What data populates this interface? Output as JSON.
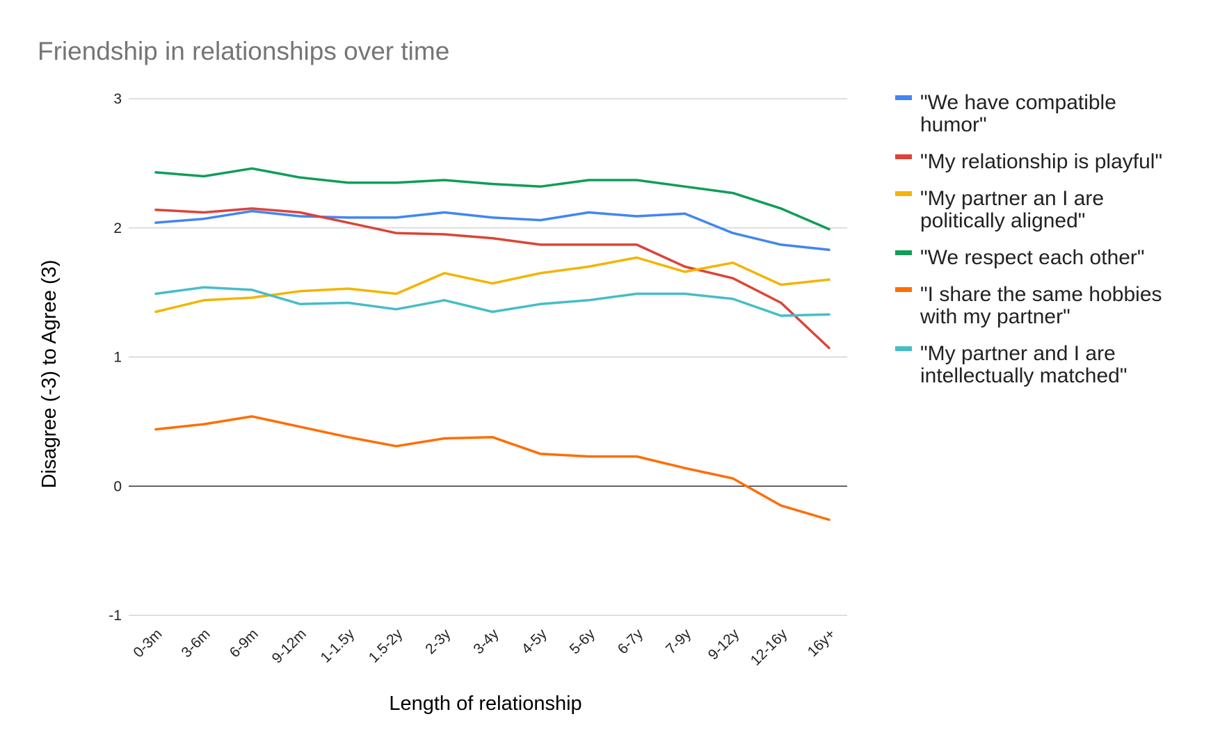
{
  "chart_data": {
    "type": "line",
    "title": "Friendship in relationships over time",
    "xlabel": "Length of relationship",
    "ylabel": "Disagree (-3) to Agree (3)",
    "ylim": [
      -1,
      3
    ],
    "yticks": [
      "3",
      "2",
      "1",
      "0",
      "-1"
    ],
    "grid": true,
    "legend_position": "right",
    "categories": [
      "0-3m",
      "3-6m",
      "6-9m",
      "9-12m",
      "1-1.5y",
      "1.5-2y",
      "2-3y",
      "3-4y",
      "4-5y",
      "5-6y",
      "6-7y",
      "7-9y",
      "9-12y",
      "12-16y",
      "16y+"
    ],
    "series": [
      {
        "name": "\"We have compatible humor\"",
        "legend_lines": [
          "\"We have compatible",
          "humor\""
        ],
        "color": "#4285f4",
        "values": [
          2.04,
          2.07,
          2.13,
          2.09,
          2.08,
          2.08,
          2.12,
          2.08,
          2.06,
          2.12,
          2.09,
          2.11,
          1.96,
          1.87,
          1.83
        ]
      },
      {
        "name": "\"My relationship is playful\"",
        "legend_lines": [
          "\"My relationship is playful\""
        ],
        "color": "#db4437",
        "values": [
          2.14,
          2.12,
          2.15,
          2.12,
          2.04,
          1.96,
          1.95,
          1.92,
          1.87,
          1.87,
          1.87,
          1.7,
          1.61,
          1.42,
          1.07
        ]
      },
      {
        "name": "\"My partner an I are politically aligned\"",
        "legend_lines": [
          "\"My partner an I are",
          "politically aligned\""
        ],
        "color": "#f4b400",
        "values": [
          1.35,
          1.44,
          1.46,
          1.51,
          1.53,
          1.49,
          1.65,
          1.57,
          1.65,
          1.7,
          1.77,
          1.66,
          1.73,
          1.56,
          1.6
        ]
      },
      {
        "name": "\"We respect each other\"",
        "legend_lines": [
          "\"We respect each other\""
        ],
        "color": "#0f9d58",
        "values": [
          2.43,
          2.4,
          2.46,
          2.39,
          2.35,
          2.35,
          2.37,
          2.34,
          2.32,
          2.37,
          2.37,
          2.32,
          2.27,
          2.15,
          1.99
        ]
      },
      {
        "name": "\"I share the same hobbies with my partner\"",
        "legend_lines": [
          "\"I share the same hobbies",
          "with my partner\""
        ],
        "color": "#ff6d01",
        "values": [
          0.44,
          0.48,
          0.54,
          0.46,
          0.38,
          0.31,
          0.37,
          0.38,
          0.25,
          0.23,
          0.23,
          0.14,
          0.06,
          -0.15,
          -0.26
        ]
      },
      {
        "name": "\"My partner and I are intellectually matched\"",
        "legend_lines": [
          "\"My partner and I are",
          "intellectually matched\""
        ],
        "color": "#46bdc6",
        "values": [
          1.49,
          1.54,
          1.52,
          1.41,
          1.42,
          1.37,
          1.44,
          1.35,
          1.41,
          1.44,
          1.49,
          1.49,
          1.45,
          1.32,
          1.33
        ]
      }
    ]
  }
}
